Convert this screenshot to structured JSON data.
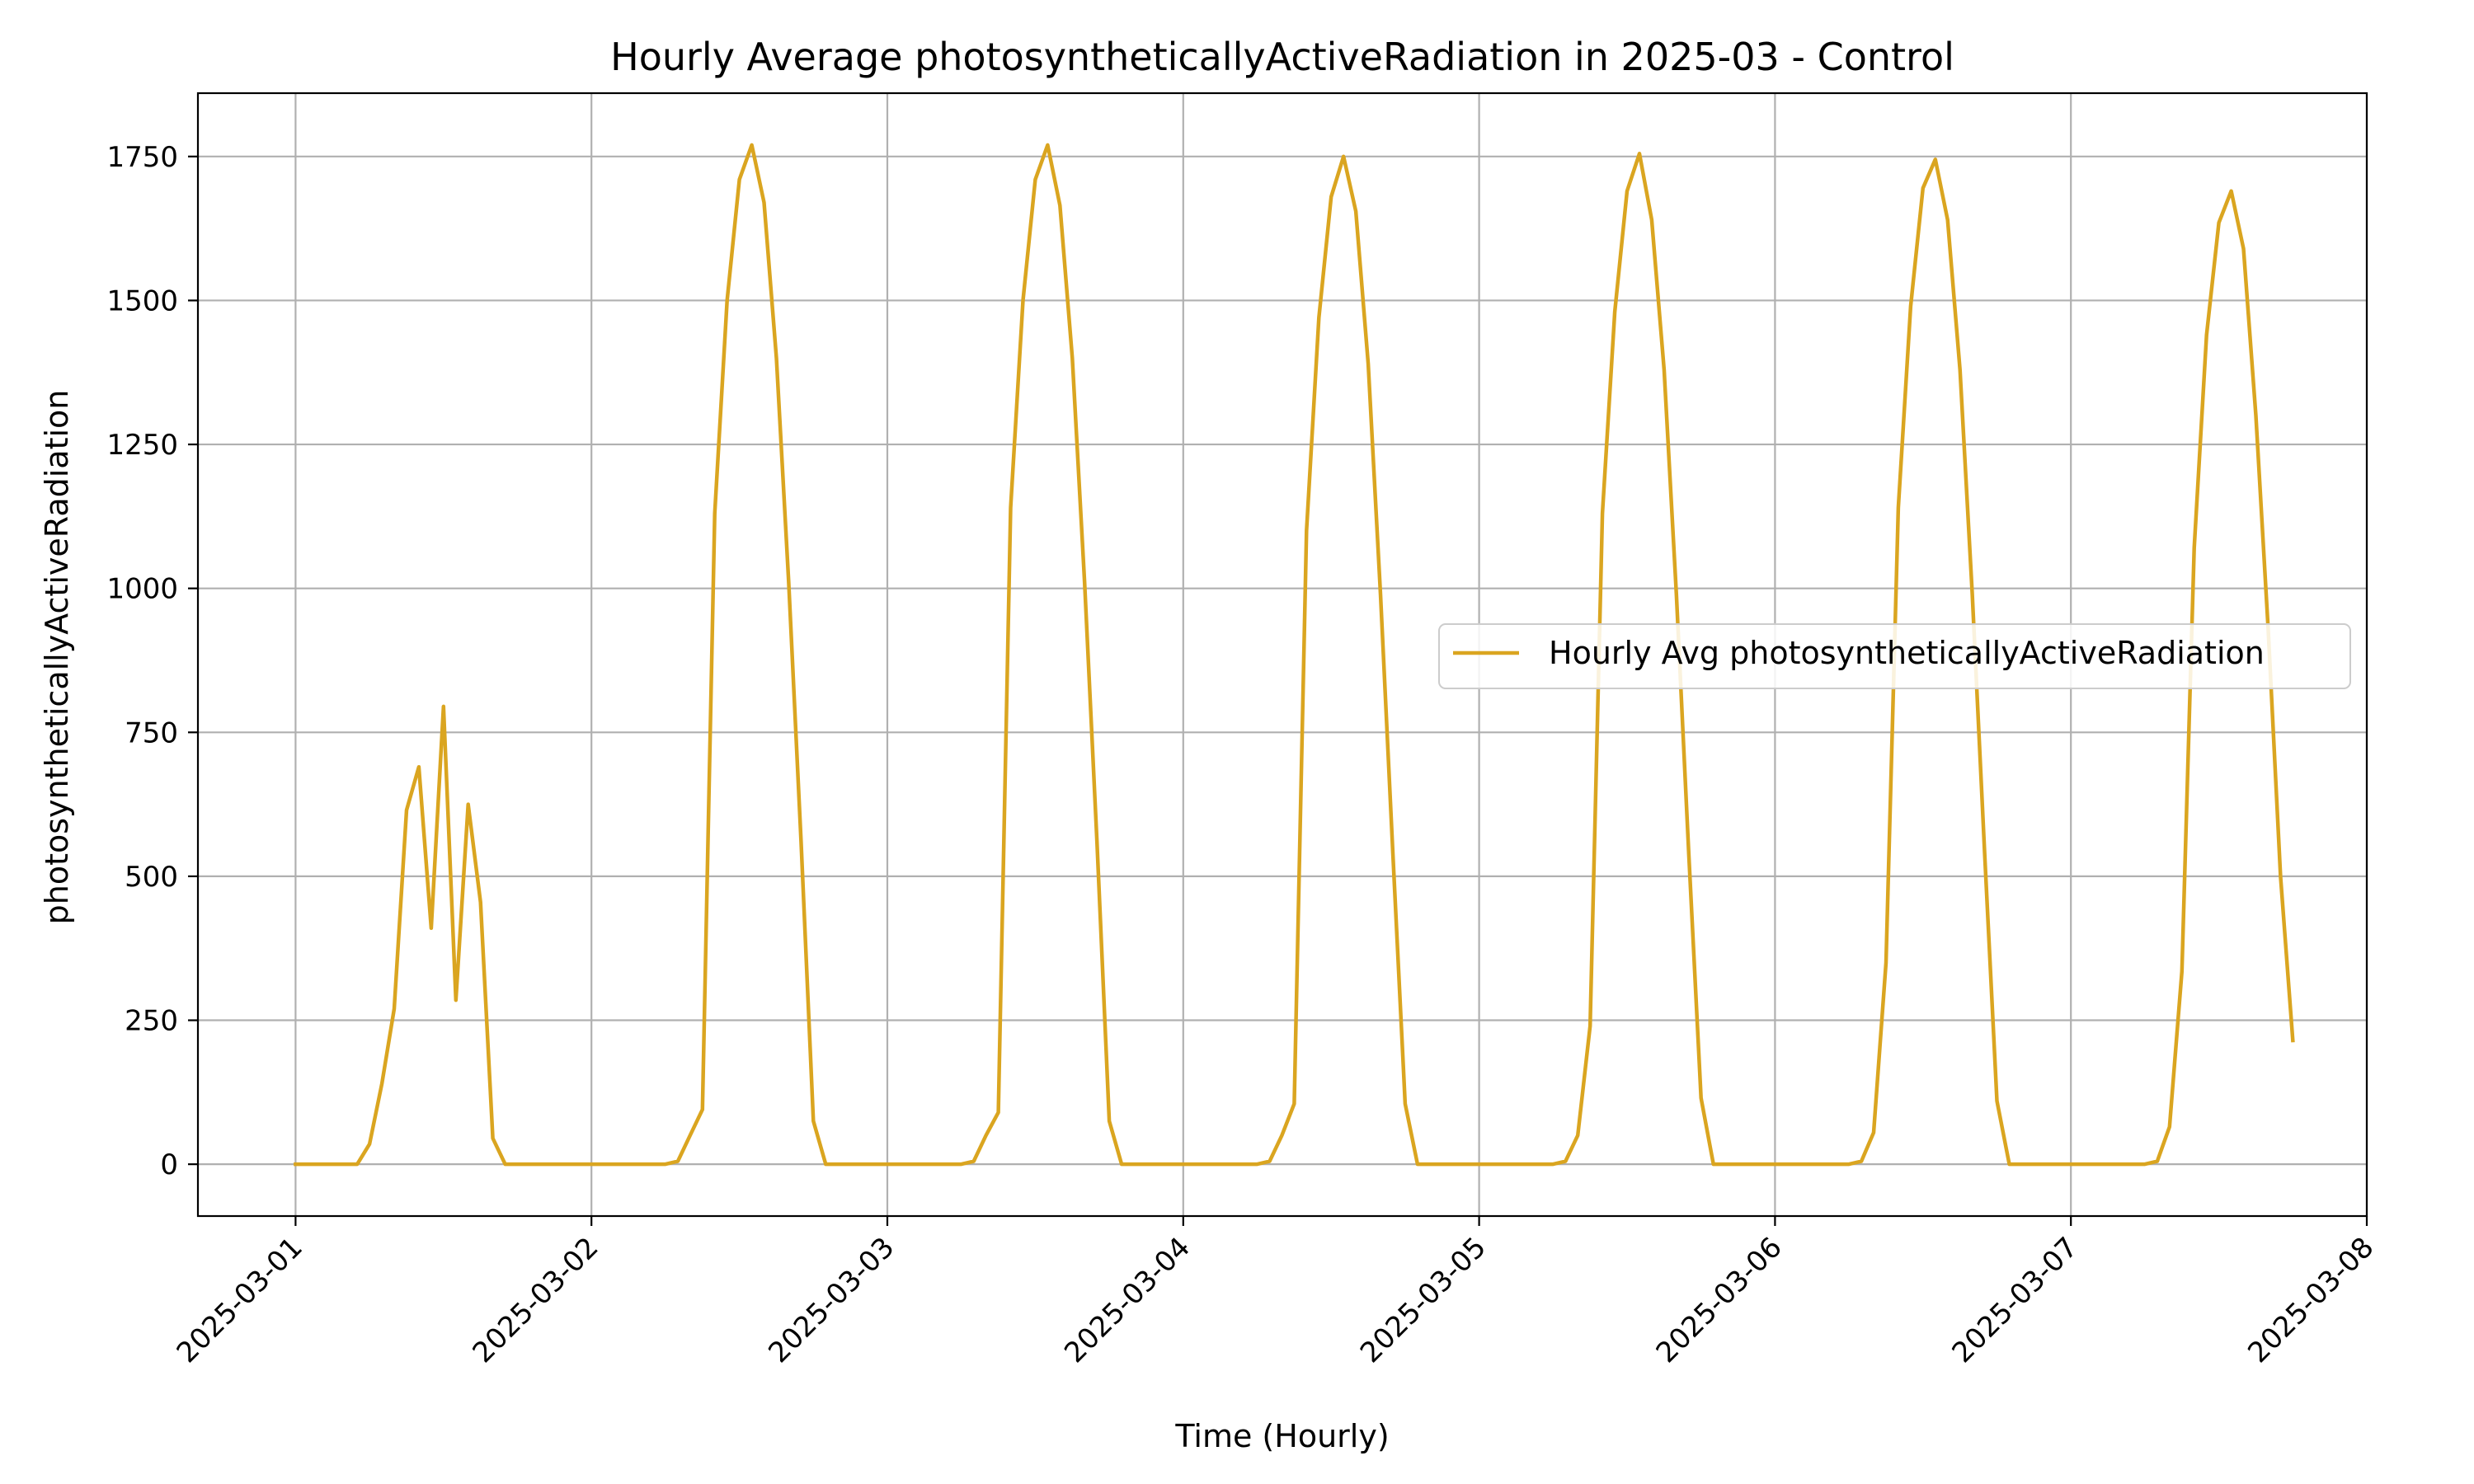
{
  "chart_data": {
    "type": "line",
    "title": "Hourly Average photosyntheticallyActiveRadiation in 2025-03 - Control",
    "xlabel": "Time (Hourly)",
    "ylabel": "photosyntheticallyActiveRadiation",
    "x_start": "2025-03-01 00:00",
    "x_step": "1 hour",
    "xlim": [
      "2025-03-01",
      "2025-03-08"
    ],
    "ylim": [
      -90,
      1860
    ],
    "x_tick_labels": [
      "2025-03-01",
      "2025-03-02",
      "2025-03-03",
      "2025-03-04",
      "2025-03-05",
      "2025-03-06",
      "2025-03-07",
      "2025-03-08"
    ],
    "y_ticks": [
      0,
      250,
      500,
      750,
      1000,
      1250,
      1500,
      1750
    ],
    "y_tick_labels": [
      "0",
      "250",
      "500",
      "750",
      "1000",
      "1250",
      "1500",
      "1750"
    ],
    "grid": true,
    "legend_position": "center-right",
    "series": [
      {
        "name": "Hourly Avg photosyntheticallyActiveRadiation",
        "color": "#DAA520",
        "values": [
          0,
          0,
          0,
          0,
          0,
          0,
          35,
          140,
          270,
          615,
          690,
          410,
          795,
          285,
          625,
          455,
          45,
          0,
          0,
          0,
          0,
          0,
          0,
          0,
          0,
          0,
          0,
          0,
          0,
          0,
          0,
          5,
          50,
          95,
          1130,
          1500,
          1710,
          1770,
          1670,
          1400,
          1010,
          560,
          75,
          0,
          0,
          0,
          0,
          0,
          0,
          0,
          0,
          0,
          0,
          0,
          0,
          5,
          50,
          90,
          1140,
          1500,
          1710,
          1770,
          1665,
          1400,
          1010,
          560,
          75,
          0,
          0,
          0,
          0,
          0,
          0,
          0,
          0,
          0,
          0,
          0,
          0,
          5,
          50,
          105,
          1100,
          1470,
          1680,
          1750,
          1655,
          1390,
          990,
          540,
          105,
          0,
          0,
          0,
          0,
          0,
          0,
          0,
          0,
          0,
          0,
          0,
          0,
          5,
          50,
          240,
          1130,
          1480,
          1690,
          1755,
          1640,
          1380,
          990,
          540,
          115,
          0,
          0,
          0,
          0,
          0,
          0,
          0,
          0,
          0,
          0,
          0,
          0,
          5,
          55,
          350,
          1140,
          1490,
          1695,
          1745,
          1640,
          1380,
          990,
          540,
          110,
          0,
          0,
          0,
          0,
          0,
          0,
          0,
          0,
          0,
          0,
          0,
          0,
          5,
          65,
          335,
          1070,
          1440,
          1635,
          1690,
          1590,
          1300,
          930,
          500,
          215
        ]
      }
    ]
  }
}
